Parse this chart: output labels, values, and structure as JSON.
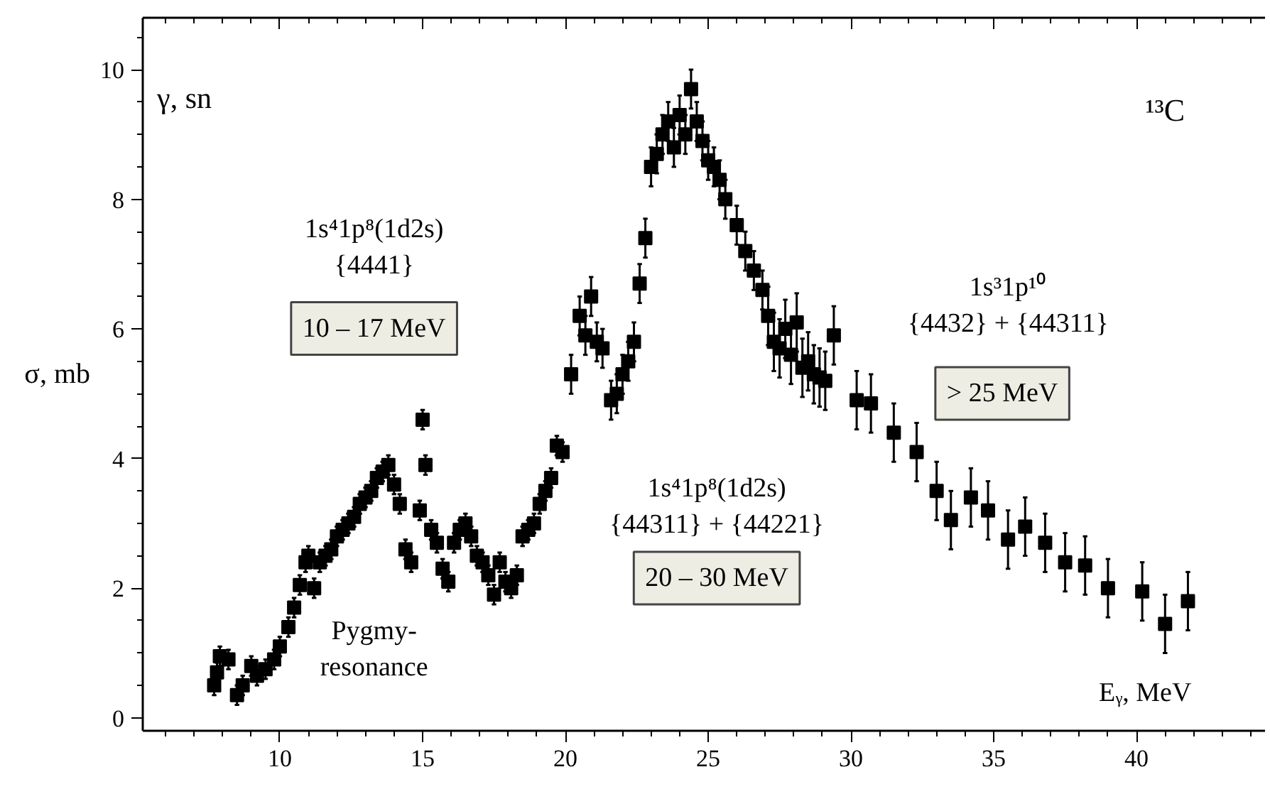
{
  "chart_data": {
    "type": "scatter",
    "xlabel": "Eᵧ, MeV",
    "ylabel": "σ, mb",
    "x": [
      7.7,
      7.8,
      7.9,
      8.2,
      8.5,
      8.7,
      9.0,
      9.2,
      9.5,
      9.8,
      10.0,
      10.3,
      10.5,
      10.7,
      10.9,
      11.0,
      11.2,
      11.4,
      11.6,
      11.8,
      12.0,
      12.2,
      12.4,
      12.6,
      12.8,
      13.0,
      13.2,
      13.4,
      13.6,
      13.8,
      14.0,
      14.2,
      14.4,
      14.6,
      14.9,
      15.0,
      15.1,
      15.3,
      15.5,
      15.7,
      15.9,
      16.1,
      16.3,
      16.5,
      16.7,
      16.9,
      17.1,
      17.3,
      17.5,
      17.7,
      17.9,
      18.1,
      18.3,
      18.5,
      18.7,
      18.9,
      19.1,
      19.3,
      19.5,
      19.7,
      19.9,
      20.2,
      20.5,
      20.7,
      20.9,
      21.1,
      21.3,
      21.6,
      21.8,
      22.0,
      22.2,
      22.4,
      22.6,
      22.8,
      23.0,
      23.2,
      23.4,
      23.6,
      23.8,
      24.0,
      24.2,
      24.4,
      24.6,
      24.8,
      25.0,
      25.2,
      25.4,
      25.6,
      26.0,
      26.3,
      26.6,
      26.9,
      27.1,
      27.3,
      27.5,
      27.7,
      27.9,
      28.1,
      28.3,
      28.5,
      28.7,
      28.9,
      29.1,
      29.4,
      30.2,
      30.7,
      31.5,
      32.3,
      33.0,
      33.5,
      34.2,
      34.8,
      35.5,
      36.1,
      36.8,
      37.5,
      38.2,
      39.0,
      40.2,
      41.0,
      41.8
    ],
    "series": [
      {
        "color": "#000000",
        "values": [
          0.5,
          0.7,
          0.95,
          0.9,
          0.35,
          0.5,
          0.8,
          0.65,
          0.75,
          0.9,
          1.1,
          1.4,
          1.7,
          2.05,
          2.4,
          2.5,
          2.0,
          2.4,
          2.5,
          2.6,
          2.8,
          2.9,
          3.0,
          3.1,
          3.3,
          3.4,
          3.5,
          3.7,
          3.8,
          3.9,
          3.6,
          3.3,
          2.6,
          2.4,
          3.2,
          4.6,
          3.9,
          2.9,
          2.7,
          2.3,
          2.1,
          2.7,
          2.9,
          3.0,
          2.8,
          2.5,
          2.4,
          2.2,
          1.9,
          2.4,
          2.1,
          2.0,
          2.2,
          2.8,
          2.9,
          3.0,
          3.3,
          3.5,
          3.7,
          4.2,
          4.1,
          5.3,
          6.2,
          5.9,
          6.5,
          5.8,
          5.7,
          4.9,
          5.0,
          5.3,
          5.5,
          5.8,
          6.7,
          7.4,
          8.5,
          8.7,
          9.0,
          9.2,
          8.8,
          9.3,
          9.0,
          9.7,
          9.2,
          8.9,
          8.6,
          8.5,
          8.3,
          8.0,
          7.6,
          7.2,
          6.9,
          6.6,
          6.2,
          5.8,
          5.7,
          6.0,
          5.6,
          6.1,
          5.4,
          5.5,
          5.3,
          5.25,
          5.2,
          5.9,
          4.9,
          4.85,
          4.4,
          4.1,
          3.5,
          3.05,
          3.4,
          3.2,
          2.75,
          2.95,
          2.7,
          2.4,
          2.35,
          2.0,
          1.95,
          1.45,
          1.8
        ],
        "errors": [
          0.15,
          0.15,
          0.15,
          0.15,
          0.15,
          0.15,
          0.15,
          0.15,
          0.15,
          0.15,
          0.15,
          0.15,
          0.15,
          0.15,
          0.15,
          0.15,
          0.15,
          0.15,
          0.15,
          0.15,
          0.15,
          0.15,
          0.15,
          0.15,
          0.15,
          0.15,
          0.15,
          0.15,
          0.15,
          0.15,
          0.15,
          0.15,
          0.15,
          0.15,
          0.15,
          0.15,
          0.15,
          0.15,
          0.15,
          0.15,
          0.15,
          0.15,
          0.15,
          0.15,
          0.15,
          0.15,
          0.15,
          0.15,
          0.15,
          0.15,
          0.15,
          0.15,
          0.15,
          0.15,
          0.15,
          0.15,
          0.15,
          0.15,
          0.15,
          0.15,
          0.15,
          0.3,
          0.3,
          0.3,
          0.3,
          0.3,
          0.3,
          0.3,
          0.3,
          0.3,
          0.3,
          0.3,
          0.3,
          0.3,
          0.3,
          0.3,
          0.3,
          0.3,
          0.3,
          0.3,
          0.3,
          0.3,
          0.3,
          0.3,
          0.3,
          0.3,
          0.3,
          0.3,
          0.3,
          0.3,
          0.3,
          0.3,
          0.45,
          0.45,
          0.45,
          0.45,
          0.45,
          0.45,
          0.45,
          0.45,
          0.45,
          0.45,
          0.45,
          0.45,
          0.45,
          0.45,
          0.45,
          0.45,
          0.45,
          0.45,
          0.45,
          0.45,
          0.45,
          0.45,
          0.45,
          0.45,
          0.45,
          0.45,
          0.45,
          0.45,
          0.45
        ]
      }
    ],
    "xlim": [
      5.2,
      44.5
    ],
    "ylim": [
      -0.2,
      10.8
    ],
    "xticks": [
      10,
      15,
      20,
      25,
      30,
      35,
      40
    ],
    "yticks": [
      0,
      2,
      4,
      6,
      8,
      10
    ],
    "marker": "square",
    "grid": false,
    "annotations": [
      "γ, sn",
      "¹³C",
      "1s⁴1p⁸(1d2s)\n{4441}",
      "10 – 17 MeV",
      "Pygmy-\nresonance",
      "1s⁴1p⁸(1d2s)\n{44311} + {44221}",
      "20 – 30 MeV",
      "1s³1p¹⁰\n{4432} + {44311}",
      "> 25 MeV"
    ]
  }
}
